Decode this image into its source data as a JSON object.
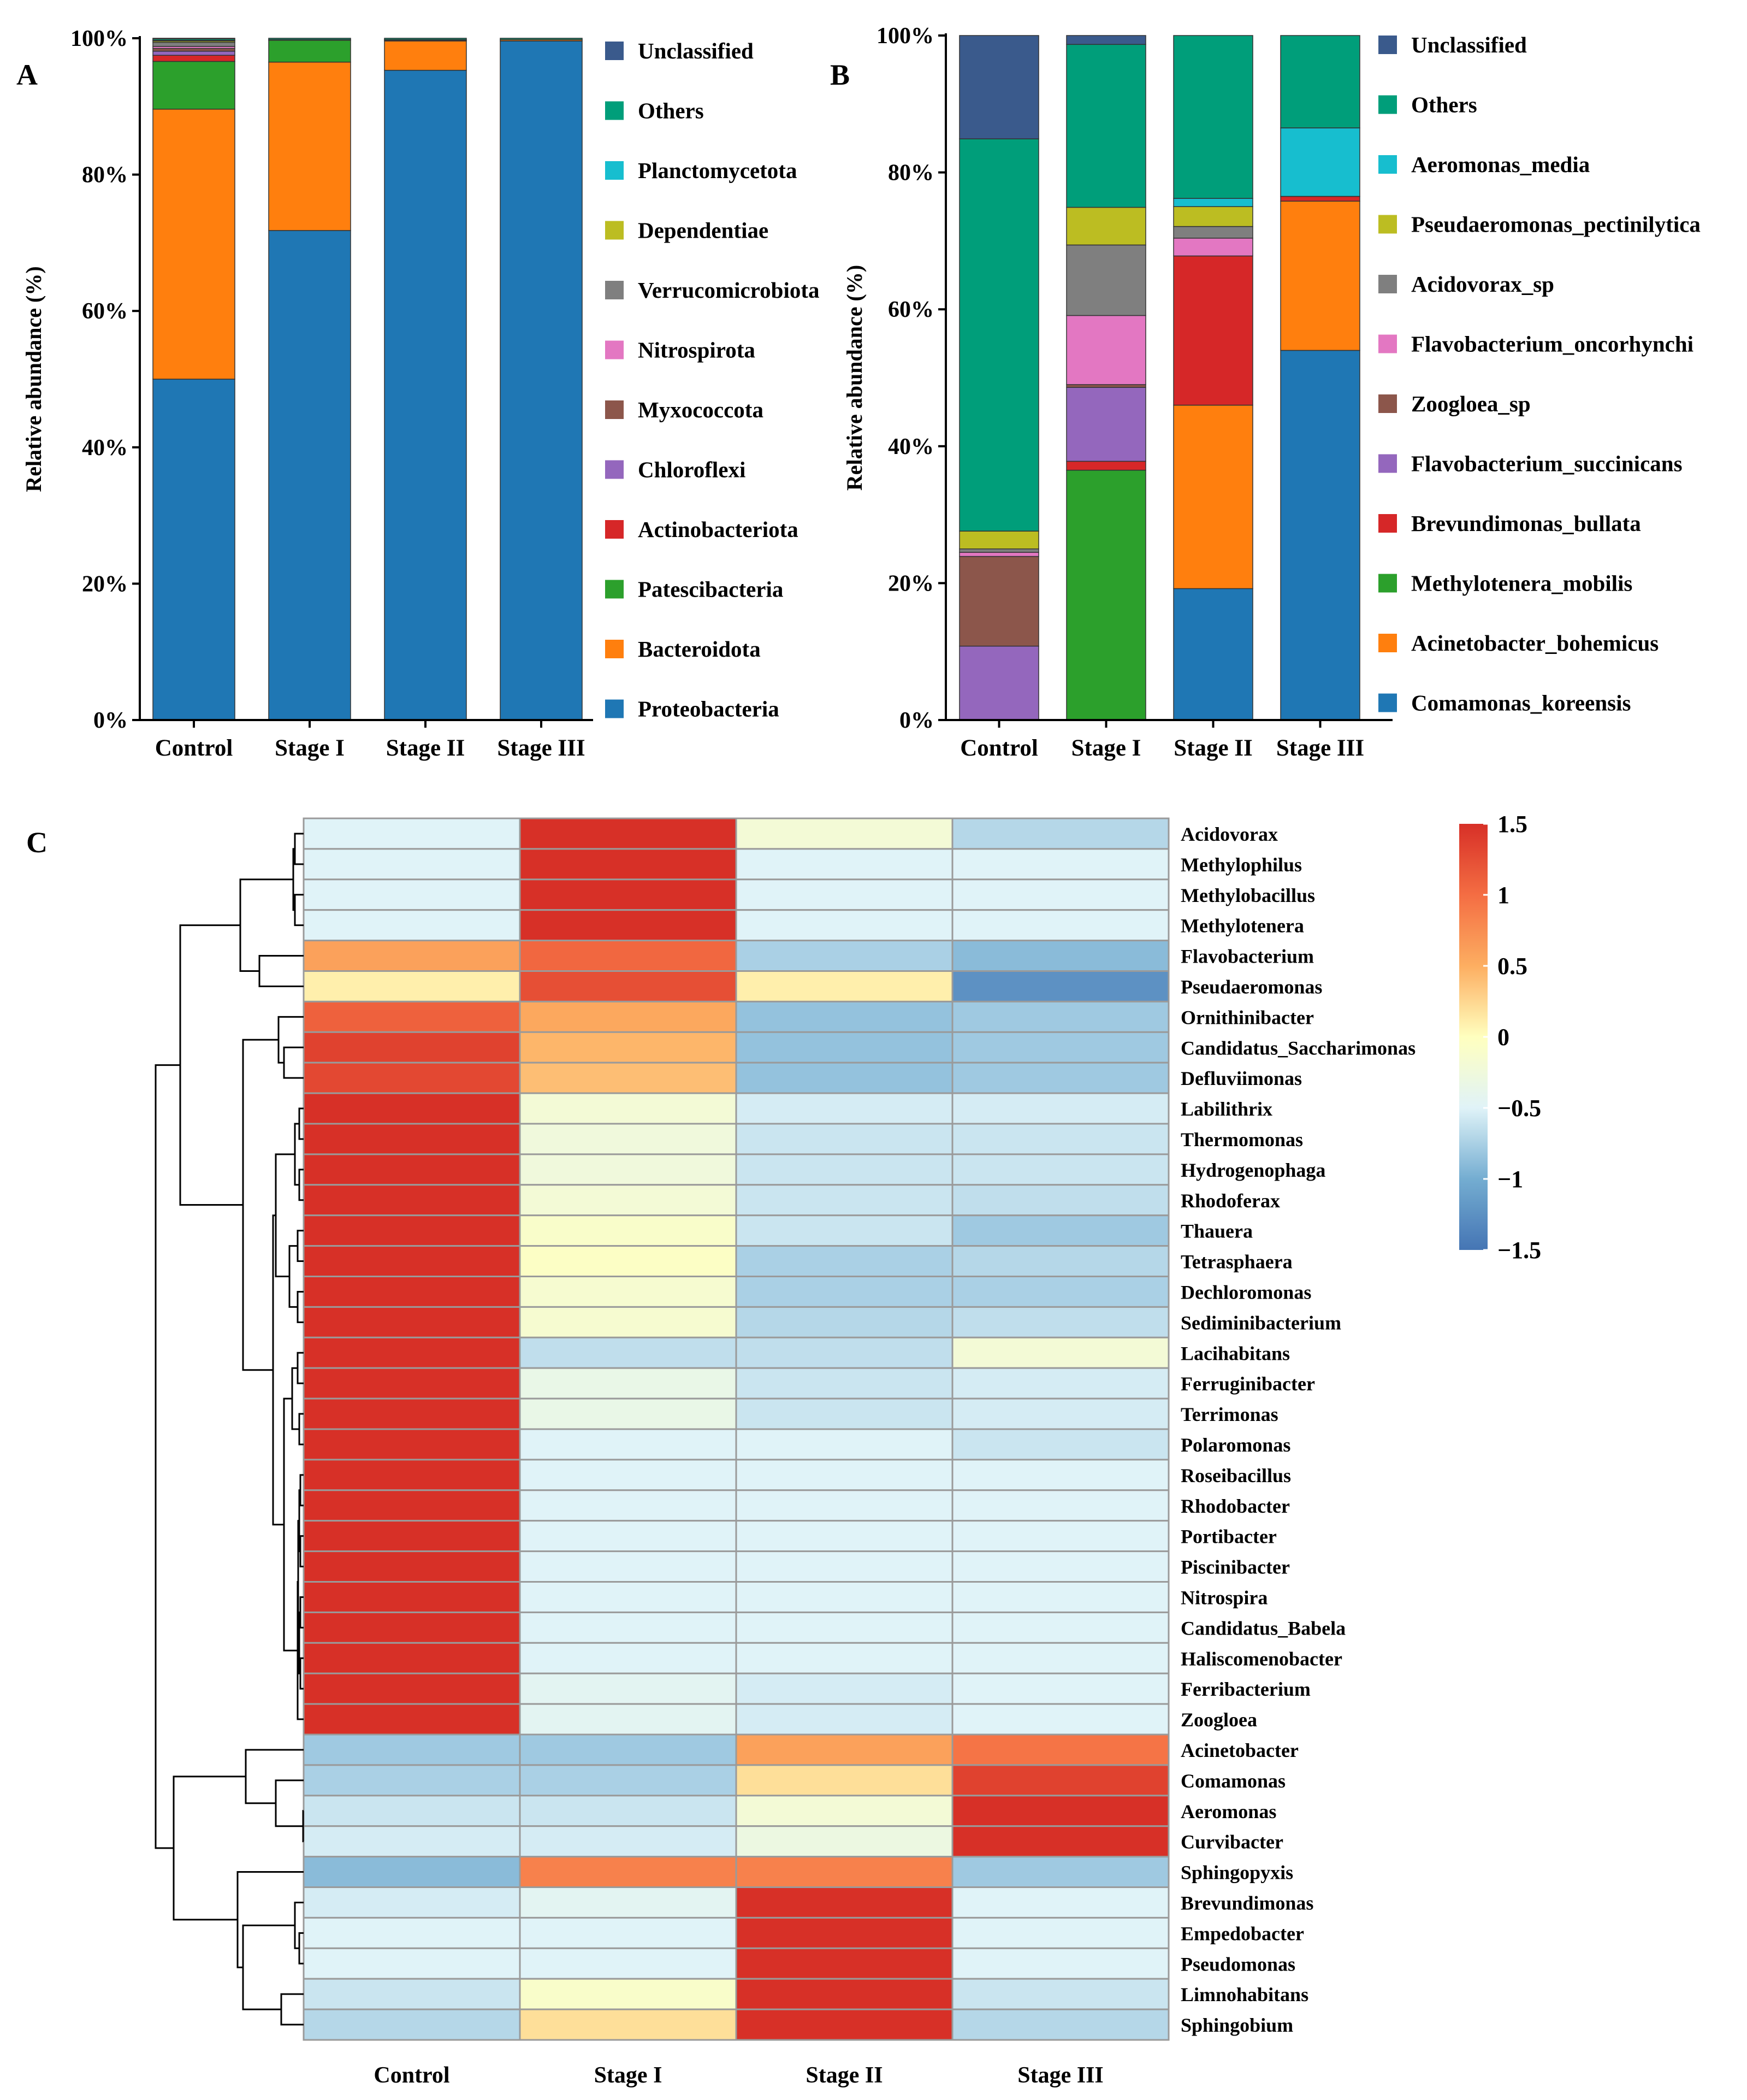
{
  "chart_data": [
    {
      "id": "A",
      "type": "bar",
      "stacked": true,
      "panel_label": "A",
      "ylabel": "Relative abundance (%)",
      "ylim": [
        0,
        100
      ],
      "yticks": [
        "0%",
        "20%",
        "40%",
        "60%",
        "80%",
        "100%"
      ],
      "categories": [
        "Control",
        "Stage I",
        "Stage II",
        "Stage III"
      ],
      "series": [
        {
          "name": "Proteobacteria",
          "color": "#1f77b4",
          "values": [
            50.0,
            71.8,
            95.3,
            99.6
          ]
        },
        {
          "name": "Bacteroidota",
          "color": "#ff7f0e",
          "values": [
            39.6,
            24.7,
            4.3,
            0.2
          ]
        },
        {
          "name": "Patescibacteria",
          "color": "#2ca02c",
          "values": [
            7.0,
            3.2,
            0.1,
            0.0
          ]
        },
        {
          "name": "Actinobacteriota",
          "color": "#d62728",
          "values": [
            0.9,
            0.1,
            0.1,
            0.0
          ]
        },
        {
          "name": "Chloroflexi",
          "color": "#9467bd",
          "values": [
            0.6,
            0.0,
            0.0,
            0.0
          ]
        },
        {
          "name": "Myxococcota",
          "color": "#8c564b",
          "values": [
            0.4,
            0.0,
            0.0,
            0.0
          ]
        },
        {
          "name": "Nitrospirota",
          "color": "#e377c2",
          "values": [
            0.3,
            0.0,
            0.0,
            0.0
          ]
        },
        {
          "name": "Verrucomicrobiota",
          "color": "#7f7f7f",
          "values": [
            0.6,
            0.0,
            0.0,
            0.0
          ]
        },
        {
          "name": "Dependentiae",
          "color": "#bcbd22",
          "values": [
            0.2,
            0.0,
            0.0,
            0.0
          ]
        },
        {
          "name": "Planctomycetota",
          "color": "#17becf",
          "values": [
            0.1,
            0.0,
            0.0,
            0.0
          ]
        },
        {
          "name": "Others",
          "color": "#009e7a",
          "values": [
            0.2,
            0.2,
            0.2,
            0.2
          ]
        },
        {
          "name": "Unclassified",
          "color": "#3a5a8c",
          "values": [
            0.1,
            0.0,
            0.0,
            0.0
          ]
        }
      ],
      "legend_order": [
        "Unclassified",
        "Others",
        "Planctomycetota",
        "Dependentiae",
        "Verrucomicrobiota",
        "Nitrospirota",
        "Myxococcota",
        "Chloroflexi",
        "Actinobacteriota",
        "Patescibacteria",
        "Bacteroidota",
        "Proteobacteria"
      ]
    },
    {
      "id": "B",
      "type": "bar",
      "stacked": true,
      "panel_label": "B",
      "ylabel": "Relative abundance (%)",
      "ylim": [
        0,
        100
      ],
      "yticks": [
        "0%",
        "20%",
        "40%",
        "60%",
        "80%",
        "100%"
      ],
      "categories": [
        "Control",
        "Stage I",
        "Stage II",
        "Stage III"
      ],
      "series": [
        {
          "name": "Comamonas_koreensis",
          "color": "#1f77b4",
          "values": [
            0.0,
            0.0,
            19.2,
            54.0
          ]
        },
        {
          "name": "Acinetobacter_bohemicus",
          "color": "#ff7f0e",
          "values": [
            0.0,
            0.0,
            26.8,
            21.8
          ]
        },
        {
          "name": "Methylotenera_mobilis",
          "color": "#2ca02c",
          "values": [
            0.0,
            36.5,
            0.0,
            0.0
          ]
        },
        {
          "name": "Brevundimonas_bullata",
          "color": "#d62728",
          "values": [
            0.0,
            1.3,
            21.8,
            0.7
          ]
        },
        {
          "name": "Flavobacterium_succinicans",
          "color": "#9467bd",
          "values": [
            10.8,
            10.8,
            0.0,
            0.0
          ]
        },
        {
          "name": "Zoogloea_sp",
          "color": "#8c564b",
          "values": [
            13.1,
            0.4,
            0.0,
            0.0
          ]
        },
        {
          "name": "Flavobacterium_oncorhynchi",
          "color": "#e377c2",
          "values": [
            0.6,
            10.1,
            2.6,
            0.0
          ]
        },
        {
          "name": "Acidovorax_sp",
          "color": "#7f7f7f",
          "values": [
            0.5,
            10.3,
            1.7,
            0.0
          ]
        },
        {
          "name": "Pseudaeromonas_pectinilytica",
          "color": "#bcbd22",
          "values": [
            2.6,
            5.5,
            2.9,
            0.0
          ]
        },
        {
          "name": "Aeromonas_media",
          "color": "#17becf",
          "values": [
            0.0,
            0.0,
            1.2,
            10.0
          ]
        },
        {
          "name": "Others",
          "color": "#009e7a",
          "values": [
            57.3,
            23.8,
            23.8,
            13.5
          ]
        },
        {
          "name": "Unclassified",
          "color": "#3a5a8c",
          "values": [
            15.1,
            1.3,
            0.0,
            0.0
          ]
        }
      ],
      "legend_order": [
        "Unclassified",
        "Others",
        "Aeromonas_media",
        "Pseudaeromonas_pectinilytica",
        "Acidovorax_sp",
        "Flavobacterium_oncorhynchi",
        "Zoogloea_sp",
        "Flavobacterium_succinicans",
        "Brevundimonas_bullata",
        "Methylotenera_mobilis",
        "Acinetobacter_bohemicus",
        "Comamonas_koreensis"
      ]
    },
    {
      "id": "C",
      "type": "heatmap",
      "panel_label": "C",
      "columns": [
        "Control",
        "Stage I",
        "Stage II",
        "Stage III"
      ],
      "rows": [
        "Acidovorax",
        "Methylophilus",
        "Methylobacillus",
        "Methylotenera",
        "Flavobacterium",
        "Pseudaeromonas",
        "Ornithinibacter",
        "Candidatus_Saccharimonas",
        "Defluviimonas",
        "Labilithrix",
        "Thermomonas",
        "Hydrogenophaga",
        "Rhodoferax",
        "Thauera",
        "Tetrasphaera",
        "Dechloromonas",
        "Sediminibacterium",
        "Lacihabitans",
        "Ferruginibacter",
        "Terrimonas",
        "Polaromonas",
        "Roseibacillus",
        "Rhodobacter",
        "Portibacter",
        "Piscinibacter",
        "Nitrospira",
        "Candidatus_Babela",
        "Haliscomenobacter",
        "Ferribacterium",
        "Zoogloea",
        "Acinetobacter",
        "Comamonas",
        "Aeromonas",
        "Curvibacter",
        "Sphingopyxis",
        "Brevundimonas",
        "Empedobacter",
        "Pseudomonas",
        "Limnohabitans",
        "Sphingobium"
      ],
      "values": [
        [
          -0.5,
          1.5,
          -0.2,
          -0.7
        ],
        [
          -0.5,
          1.5,
          -0.5,
          -0.5
        ],
        [
          -0.5,
          1.5,
          -0.5,
          -0.5
        ],
        [
          -0.5,
          1.5,
          -0.5,
          -0.5
        ],
        [
          0.6,
          1.05,
          -0.75,
          -0.9
        ],
        [
          0.1,
          1.25,
          0.1,
          -1.25
        ],
        [
          1.1,
          0.55,
          -0.85,
          -0.8
        ],
        [
          1.35,
          0.45,
          -0.85,
          -0.8
        ],
        [
          1.3,
          0.4,
          -0.85,
          -0.8
        ],
        [
          1.5,
          -0.2,
          -0.55,
          -0.55
        ],
        [
          1.5,
          -0.25,
          -0.6,
          -0.6
        ],
        [
          1.5,
          -0.25,
          -0.6,
          -0.6
        ],
        [
          1.5,
          -0.2,
          -0.6,
          -0.65
        ],
        [
          1.5,
          -0.1,
          -0.6,
          -0.8
        ],
        [
          1.5,
          -0.05,
          -0.75,
          -0.7
        ],
        [
          1.5,
          -0.15,
          -0.75,
          -0.75
        ],
        [
          1.5,
          -0.15,
          -0.7,
          -0.65
        ],
        [
          1.5,
          -0.65,
          -0.65,
          -0.2
        ],
        [
          1.5,
          -0.35,
          -0.6,
          -0.55
        ],
        [
          1.5,
          -0.35,
          -0.6,
          -0.55
        ],
        [
          1.5,
          -0.5,
          -0.5,
          -0.6
        ],
        [
          1.5,
          -0.5,
          -0.5,
          -0.5
        ],
        [
          1.5,
          -0.5,
          -0.5,
          -0.5
        ],
        [
          1.5,
          -0.5,
          -0.5,
          -0.5
        ],
        [
          1.5,
          -0.5,
          -0.5,
          -0.5
        ],
        [
          1.5,
          -0.5,
          -0.5,
          -0.5
        ],
        [
          1.5,
          -0.5,
          -0.5,
          -0.5
        ],
        [
          1.5,
          -0.5,
          -0.5,
          -0.5
        ],
        [
          1.5,
          -0.45,
          -0.55,
          -0.5
        ],
        [
          1.5,
          -0.45,
          -0.55,
          -0.5
        ],
        [
          -0.8,
          -0.8,
          0.6,
          0.95
        ],
        [
          -0.75,
          -0.75,
          0.2,
          1.35
        ],
        [
          -0.6,
          -0.6,
          -0.2,
          1.5
        ],
        [
          -0.55,
          -0.55,
          -0.3,
          1.5
        ],
        [
          -0.9,
          0.85,
          0.85,
          -0.8
        ],
        [
          -0.55,
          -0.45,
          1.5,
          -0.5
        ],
        [
          -0.5,
          -0.5,
          1.5,
          -0.5
        ],
        [
          -0.5,
          -0.5,
          1.5,
          -0.5
        ],
        [
          -0.6,
          -0.1,
          1.5,
          -0.6
        ],
        [
          -0.7,
          0.2,
          1.5,
          -0.7
        ]
      ],
      "colorbar": {
        "min": -1.5,
        "max": 1.5,
        "ticks": [
          "1.5",
          "1",
          "0.5",
          "0",
          "−0.5",
          "−1",
          "−1.5"
        ]
      }
    }
  ]
}
